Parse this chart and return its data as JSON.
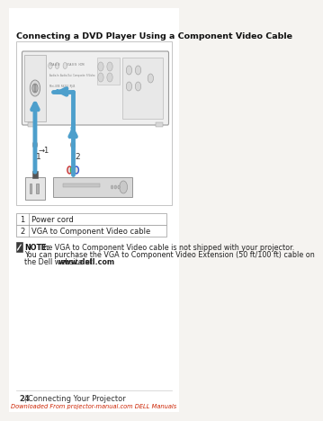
{
  "background_color": "#ffffff",
  "title": "Connecting a DVD Player Using a Component Video Cable",
  "title_fontsize": 6.8,
  "title_fontweight": "bold",
  "table_rows": [
    [
      "1",
      "Power cord"
    ],
    [
      "2",
      "VGA to Component Video cable"
    ]
  ],
  "note_text_plain": " The VGA to Component Video cable is not shipped with your projector.\nYou can purchase the VGA to Component Video Extension (50 ft/100 ft) cable on\nthe Dell website at ",
  "note_bold": "NOTE:",
  "note_url": "www.dell.com",
  "footer_page": "24",
  "footer_sep": "|",
  "footer_text": "Connecting Your Projector",
  "footer_link": "Downloaded From projector-manual.com DELL Manuals",
  "footer_link_color": "#cc2200",
  "cable_color": "#4d9fcc",
  "diagram_bg": "#ffffff",
  "diagram_border": "#cccccc",
  "proj_fill": "#f0f0f0",
  "proj_stroke": "#aaaaaa",
  "page_bg": "#f5f3f0"
}
